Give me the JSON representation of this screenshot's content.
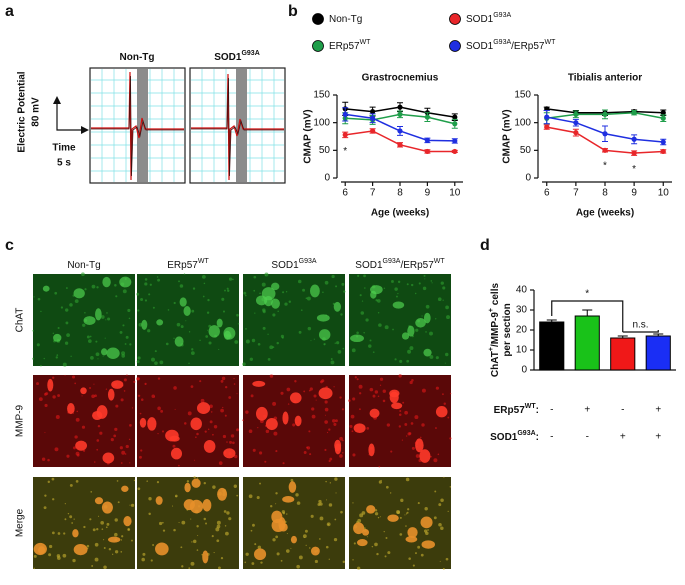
{
  "panel_labels": [
    "a",
    "b",
    "c",
    "d"
  ],
  "panel_a": {
    "y_label": [
      "Electric Potential",
      "80 mV"
    ],
    "x_label": [
      "Time",
      "5 s"
    ],
    "traces": [
      [
        {
          "text": "Non-Tg"
        }
      ],
      [
        {
          "text": "SOD1"
        },
        {
          "text": "G93A",
          "sup": true
        }
      ]
    ]
  },
  "panel_c": {
    "columns": [
      [
        {
          "text": "Non-Tg"
        }
      ],
      [
        {
          "text": "ERp57"
        },
        {
          "text": "WT",
          "sup": true
        }
      ],
      [
        {
          "text": "SOD1"
        },
        {
          "text": "G93A",
          "sup": true
        }
      ],
      [
        {
          "text": "SOD1"
        },
        {
          "text": "G93A",
          "sup": true
        },
        {
          "text": "/ERp57"
        },
        {
          "text": "WT",
          "sup": true
        }
      ]
    ],
    "rows": [
      "ChAT",
      "MMP-9",
      "Merge"
    ]
  },
  "chart_data": [
    {
      "type": "line",
      "title": "Grastrocnemius",
      "x_label": "Age (weeks)",
      "y_label": "CMAP (mV)",
      "legend": true,
      "x": [
        6,
        7,
        8,
        9,
        10
      ],
      "xlim": [
        5.7,
        10.3
      ],
      "xticks": [
        6,
        7,
        8,
        9,
        10
      ],
      "ylim": [
        0,
        150
      ],
      "yticks": [
        0,
        50,
        100,
        150
      ],
      "series": [
        {
          "name": [
            {
              "text": "Non-Tg"
            }
          ],
          "color": "#000000",
          "values": [
            125,
            120,
            128,
            118,
            110
          ],
          "errors": [
            12,
            8,
            8,
            8,
            6
          ]
        },
        {
          "name": [
            {
              "text": "SOD1"
            },
            {
              "text": "G93A",
              "sup": true
            }
          ],
          "color": "#e8262a",
          "values": [
            78,
            85,
            60,
            48,
            48
          ],
          "errors": [
            5,
            4,
            4,
            3,
            2
          ]
        },
        {
          "name": [
            {
              "text": "ERp57"
            },
            {
              "text": "WT",
              "sup": true
            }
          ],
          "color": "#1f9e4a",
          "values": [
            108,
            105,
            115,
            110,
            98
          ],
          "errors": [
            10,
            8,
            6,
            8,
            8
          ]
        },
        {
          "name": [
            {
              "text": "SOD1"
            },
            {
              "text": "G93A",
              "sup": true
            },
            {
              "text": "/ERp57"
            },
            {
              "text": "WT",
              "sup": true
            }
          ],
          "color": "#1f2fe0",
          "values": [
            115,
            108,
            85,
            68,
            67
          ],
          "errors": [
            12,
            8,
            8,
            4,
            4
          ]
        }
      ],
      "annotations": [
        {
          "x": 6,
          "text": "*"
        }
      ]
    },
    {
      "type": "line",
      "title": "Tibialis anterior",
      "x_label": "Age (weeks)",
      "y_label": "CMAP (mV)",
      "x": [
        6,
        7,
        8,
        9,
        10
      ],
      "xlim": [
        5.7,
        10.3
      ],
      "xticks": [
        6,
        7,
        8,
        9,
        10
      ],
      "ylim": [
        0,
        150
      ],
      "yticks": [
        0,
        50,
        100,
        150
      ],
      "series": [
        {
          "color": "#000000",
          "values": [
            125,
            118,
            118,
            120,
            118
          ],
          "errors": [
            3,
            4,
            5,
            3,
            5
          ]
        },
        {
          "color": "#e8262a",
          "values": [
            92,
            82,
            50,
            45,
            48
          ],
          "errors": [
            4,
            6,
            3,
            4,
            3
          ]
        },
        {
          "color": "#1f9e4a",
          "values": [
            108,
            115,
            115,
            118,
            108
          ],
          "errors": [
            10,
            6,
            8,
            4,
            6
          ]
        },
        {
          "color": "#1f2fe0",
          "values": [
            110,
            100,
            80,
            70,
            65
          ],
          "errors": [
            12,
            6,
            14,
            8,
            5
          ]
        }
      ],
      "annotations": [
        {
          "x": 8,
          "text": "*"
        },
        {
          "x": 9,
          "text": "*"
        }
      ]
    },
    {
      "type": "bar",
      "y_label": [
        [
          {
            "text": "ChAT"
          },
          {
            "text": "+",
            "sup": true
          },
          {
            "text": "/MMP-9"
          },
          {
            "text": "+",
            "sup": true
          },
          {
            "text": " cells"
          }
        ],
        [
          {
            "text": "per section"
          }
        ]
      ],
      "categories": [
        null,
        null,
        null,
        null
      ],
      "values": [
        24,
        27,
        16,
        17
      ],
      "errors": [
        1,
        3,
        1,
        1
      ],
      "colors": [
        "#000000",
        "#19c219",
        "#f01818",
        "#1a2ef5"
      ],
      "ylim": [
        0,
        40
      ],
      "yticks": [
        0,
        10,
        20,
        30,
        40
      ],
      "annotations": [
        {
          "text": "*"
        },
        {
          "text": "n.s."
        }
      ],
      "genotype_rows": [
        {
          "label": [
            {
              "text": "ERp57"
            },
            {
              "text": "WT",
              "sup": true
            },
            {
              "text": ":"
            }
          ],
          "marks": [
            "-",
            "+",
            "-",
            "+"
          ]
        },
        {
          "label": [
            {
              "text": "SOD1"
            },
            {
              "text": "G93A",
              "sup": true
            },
            {
              "text": ":"
            }
          ],
          "marks": [
            "-",
            "-",
            "+",
            "+"
          ]
        }
      ]
    }
  ]
}
